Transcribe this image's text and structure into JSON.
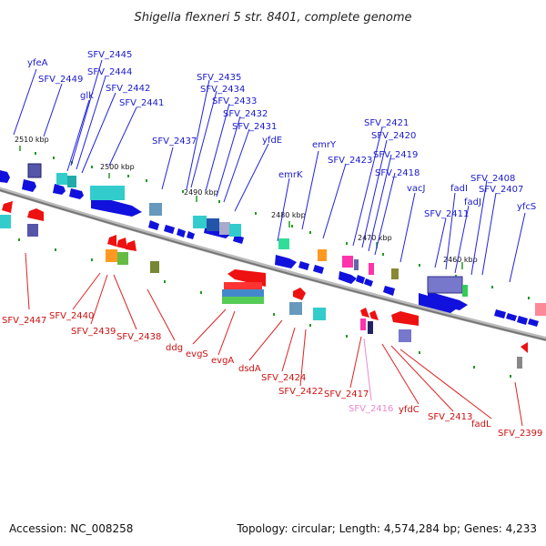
{
  "title": "Shigella flexneri 5 str. 8401, complete genome",
  "accession": "Accession: NC_008258",
  "summary": "Topology: circular; Length: 4,574,284 bp; Genes: 4,233",
  "colors": {
    "forward": "#0000cc",
    "reverse": "#cc0000",
    "highlight": "#ee88cc",
    "backbone": "#888888",
    "tick": "#229922"
  },
  "ticks": [
    "2510 kbp",
    "2500 kbp",
    "2490 kbp",
    "2480 kbp",
    "2470 kbp",
    "2460 kbp"
  ],
  "labels_top": [
    "yfeA",
    "SFV_2449",
    "glk",
    "SFV_2445",
    "SFV_2444",
    "SFV_2442",
    "SFV_2441",
    "SFV_2437",
    "SFV_2435",
    "SFV_2434",
    "SFV_2433",
    "SFV_2432",
    "SFV_2431",
    "yfdE",
    "emrK",
    "emrY",
    "SFV_2423",
    "SFV_2421",
    "SFV_2420",
    "SFV_2419",
    "SFV_2418",
    "vacJ",
    "SFV_2411",
    "fadI",
    "fadJ",
    "SFV_2408",
    "SFV_2407",
    "yfcS"
  ],
  "labels_bottom": [
    "SFV_2447",
    "SFV_2440",
    "SFV_2439",
    "SFV_2438",
    "ddg",
    "evgS",
    "evgA",
    "dsdA",
    "SFV_2424",
    "SFV_2422",
    "SFV_2417",
    "SFV_2416",
    "yfdC",
    "SFV_2413",
    "fadL",
    "SFV_2399"
  ]
}
